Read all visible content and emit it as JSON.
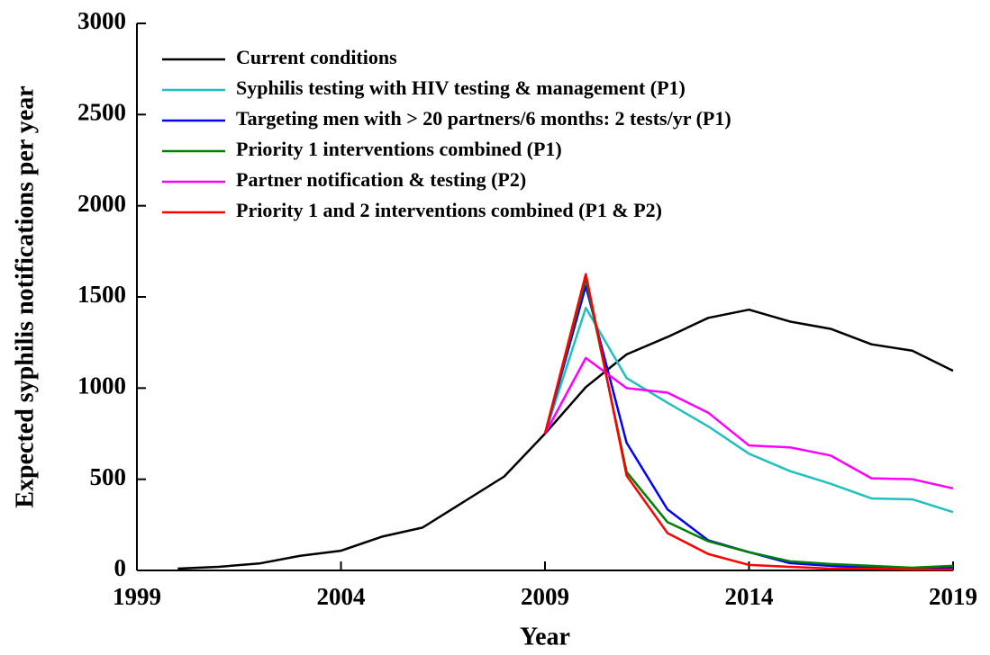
{
  "chart_data": {
    "type": "line",
    "x_label": "Year",
    "y_label": "Expected syphilis notifications per year",
    "x": [
      2000,
      2001,
      2002,
      2003,
      2004,
      2005,
      2006,
      2007,
      2008,
      2009,
      2010,
      2011,
      2012,
      2013,
      2014,
      2015,
      2016,
      2017,
      2018,
      2019
    ],
    "series": [
      {
        "name": "Current conditions",
        "color": "#000000",
        "values": [
          10,
          20,
          38,
          80,
          108,
          185,
          235,
          375,
          515,
          750,
          1005,
          1185,
          1280,
          1385,
          1430,
          1365,
          1325,
          1240,
          1205,
          1095
        ]
      },
      {
        "name": "Syphilis testing with HIV testing & management (P1)",
        "color": "#20c0c0",
        "values": [
          null,
          null,
          null,
          null,
          null,
          null,
          null,
          null,
          null,
          750,
          1440,
          1055,
          920,
          790,
          640,
          545,
          475,
          395,
          390,
          320
        ]
      },
      {
        "name": "Targeting men with > 20 partners/6 months: 2 tests/yr (P1)",
        "color": "#0000ff",
        "values": [
          null,
          null,
          null,
          null,
          null,
          null,
          null,
          null,
          null,
          750,
          1560,
          700,
          335,
          165,
          100,
          40,
          25,
          15,
          10,
          15
        ]
      },
      {
        "name": "Priority 1 interventions combined (P1)",
        "color": "#008000",
        "values": [
          null,
          null,
          null,
          null,
          null,
          null,
          null,
          null,
          null,
          750,
          1600,
          540,
          265,
          160,
          100,
          50,
          35,
          25,
          15,
          25
        ]
      },
      {
        "name": "Partner notification & testing (P2)",
        "color": "#ff00ff",
        "values": [
          null,
          null,
          null,
          null,
          null,
          null,
          null,
          null,
          null,
          750,
          1165,
          1000,
          975,
          865,
          685,
          675,
          630,
          505,
          500,
          450
        ]
      },
      {
        "name": "Priority 1 and 2 interventions combined (P1 & P2)",
        "color": "#ff0000",
        "values": [
          null,
          null,
          null,
          null,
          null,
          null,
          null,
          null,
          null,
          750,
          1625,
          520,
          205,
          90,
          30,
          20,
          10,
          10,
          5,
          5
        ]
      }
    ],
    "xlim": [
      1999,
      2019
    ],
    "xticks": [
      1999,
      2004,
      2009,
      2014,
      2019
    ],
    "ylim": [
      0,
      3000
    ],
    "yticks": [
      0,
      500,
      1000,
      1500,
      2000,
      2500,
      3000
    ],
    "grid": false,
    "legend": "upper left"
  }
}
